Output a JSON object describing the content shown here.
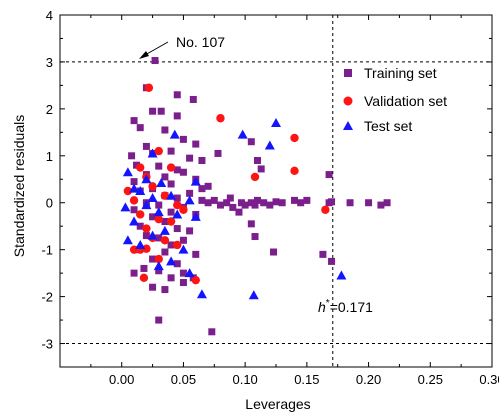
{
  "chart_data": {
    "type": "scatter",
    "xlabel": "Leverages",
    "ylabel": "Standardized residuals",
    "xlim": [
      -0.05,
      0.3
    ],
    "ylim": [
      -3.5,
      4
    ],
    "xticks": [
      "0.00",
      "0.05",
      "0.10",
      "0.15",
      "0.20",
      "0.25",
      "0.30"
    ],
    "xtick_values": [
      0.0,
      0.05,
      0.1,
      0.15,
      0.2,
      0.25,
      0.3
    ],
    "yticks": [
      "-3",
      "-2",
      "-1",
      "0",
      "1",
      "2",
      "3",
      "4"
    ],
    "ytick_values": [
      -3,
      -2,
      -1,
      0,
      1,
      2,
      3,
      4
    ],
    "grid": false,
    "legend_placement": "top-right",
    "reference_lines": {
      "horizontal": [
        3,
        -3
      ],
      "vertical": 0.171
    },
    "annotations": {
      "point_label": "No. 107",
      "point_label_target": [
        0.027,
        3.03
      ],
      "critical_leverage_base": "h",
      "critical_leverage_sup": "*",
      "critical_leverage_value": "=0.171"
    },
    "series": [
      {
        "name": "Training set",
        "marker": "square",
        "color": "#7b1f8c",
        "points": [
          [
            0.027,
            3.03
          ],
          [
            0.02,
            2.45
          ],
          [
            0.045,
            2.3
          ],
          [
            0.058,
            2.2
          ],
          [
            0.025,
            1.95
          ],
          [
            0.032,
            1.95
          ],
          [
            0.045,
            1.85
          ],
          [
            0.01,
            1.75
          ],
          [
            0.015,
            1.6
          ],
          [
            0.035,
            1.55
          ],
          [
            0.05,
            1.35
          ],
          [
            0.06,
            1.25
          ],
          [
            0.02,
            1.2
          ],
          [
            0.008,
            1.0
          ],
          [
            0.025,
            1.05
          ],
          [
            0.04,
            1.1
          ],
          [
            0.055,
            0.95
          ],
          [
            0.065,
            0.9
          ],
          [
            0.012,
            0.8
          ],
          [
            0.03,
            0.78
          ],
          [
            0.045,
            0.7
          ],
          [
            0.05,
            0.65
          ],
          [
            0.02,
            0.6
          ],
          [
            0.035,
            0.55
          ],
          [
            0.06,
            0.5
          ],
          [
            0.01,
            0.45
          ],
          [
            0.04,
            0.4
          ],
          [
            0.07,
            0.35
          ],
          [
            0.025,
            0.3
          ],
          [
            0.015,
            0.25
          ],
          [
            0.055,
            0.2
          ],
          [
            0.035,
            0.15
          ],
          [
            0.045,
            0.1
          ],
          [
            0.065,
            0.05
          ],
          [
            0.02,
            0.0
          ],
          [
            0.03,
            -0.05
          ],
          [
            0.05,
            -0.1
          ],
          [
            0.01,
            -0.15
          ],
          [
            0.04,
            -0.2
          ],
          [
            0.06,
            -0.25
          ],
          [
            0.025,
            -0.3
          ],
          [
            0.035,
            -0.4
          ],
          [
            0.015,
            -0.5
          ],
          [
            0.045,
            -0.55
          ],
          [
            0.055,
            -0.6
          ],
          [
            0.02,
            -0.7
          ],
          [
            0.03,
            -0.75
          ],
          [
            0.05,
            -0.8
          ],
          [
            0.04,
            -0.9
          ],
          [
            0.012,
            -1.0
          ],
          [
            0.035,
            -1.05
          ],
          [
            0.06,
            -1.1
          ],
          [
            0.025,
            -1.2
          ],
          [
            0.045,
            -1.3
          ],
          [
            0.018,
            -1.4
          ],
          [
            0.03,
            -1.45
          ],
          [
            0.05,
            -1.5
          ],
          [
            0.01,
            -1.5
          ],
          [
            0.04,
            -1.6
          ],
          [
            0.025,
            -1.8
          ],
          [
            0.035,
            -1.85
          ],
          [
            0.05,
            -1.7
          ],
          [
            0.058,
            -1.6
          ],
          [
            0.03,
            -2.5
          ],
          [
            0.073,
            -2.75
          ],
          [
            0.07,
            0.0
          ],
          [
            0.075,
            0.05
          ],
          [
            0.08,
            -0.05
          ],
          [
            0.085,
            0.0
          ],
          [
            0.09,
            -0.1
          ],
          [
            0.095,
            -0.2
          ],
          [
            0.1,
            -0.05
          ],
          [
            0.105,
            0.0
          ],
          [
            0.11,
            0.05
          ],
          [
            0.115,
            0.0
          ],
          [
            0.12,
            -0.05
          ],
          [
            0.125,
            0.02
          ],
          [
            0.13,
            0.0
          ],
          [
            0.088,
            0.1
          ],
          [
            0.097,
            0.0
          ],
          [
            0.108,
            -0.05
          ],
          [
            0.113,
            0.72
          ],
          [
            0.11,
            0.9
          ],
          [
            0.105,
            1.3
          ],
          [
            0.108,
            -0.72
          ],
          [
            0.105,
            -0.45
          ],
          [
            0.123,
            -1.05
          ],
          [
            0.14,
            0.05
          ],
          [
            0.145,
            0.0
          ],
          [
            0.15,
            0.05
          ],
          [
            0.168,
            0.0
          ],
          [
            0.168,
            0.6
          ],
          [
            0.17,
            0.02
          ],
          [
            0.163,
            -1.1
          ],
          [
            0.17,
            -1.25
          ],
          [
            0.185,
            0.0
          ],
          [
            0.2,
            0.0
          ],
          [
            0.21,
            -0.05
          ],
          [
            0.215,
            0.0
          ],
          [
            0.078,
            1.05
          ],
          [
            0.065,
            0.3
          ]
        ]
      },
      {
        "name": "Validation set",
        "marker": "circle",
        "color": "#ff1414",
        "points": [
          [
            0.022,
            2.45
          ],
          [
            0.08,
            1.8
          ],
          [
            0.14,
            1.38
          ],
          [
            0.03,
            1.1
          ],
          [
            0.015,
            0.75
          ],
          [
            0.04,
            0.75
          ],
          [
            0.14,
            0.68
          ],
          [
            0.02,
            0.55
          ],
          [
            0.108,
            0.55
          ],
          [
            0.025,
            0.35
          ],
          [
            0.005,
            0.25
          ],
          [
            0.035,
            0.15
          ],
          [
            0.01,
            0.05
          ],
          [
            0.045,
            -0.05
          ],
          [
            0.05,
            -0.15
          ],
          [
            0.165,
            -0.15
          ],
          [
            0.015,
            -0.25
          ],
          [
            0.03,
            -0.35
          ],
          [
            0.04,
            -0.4
          ],
          [
            0.02,
            -0.55
          ],
          [
            0.025,
            -0.75
          ],
          [
            0.035,
            -0.8
          ],
          [
            0.045,
            -0.9
          ],
          [
            0.01,
            -1.0
          ],
          [
            0.015,
            -1.0
          ],
          [
            0.02,
            -0.98
          ],
          [
            0.03,
            -1.2
          ],
          [
            0.018,
            -1.6
          ],
          [
            0.06,
            -1.65
          ]
        ]
      },
      {
        "name": "Test set",
        "marker": "triangle",
        "color": "#1414ff",
        "points": [
          [
            0.125,
            1.7
          ],
          [
            0.043,
            1.45
          ],
          [
            0.098,
            1.45
          ],
          [
            0.12,
            1.22
          ],
          [
            0.025,
            1.05
          ],
          [
            0.005,
            0.65
          ],
          [
            0.02,
            0.5
          ],
          [
            0.032,
            0.42
          ],
          [
            0.06,
            0.45
          ],
          [
            0.01,
            0.3
          ],
          [
            0.015,
            0.25
          ],
          [
            0.025,
            0.1
          ],
          [
            0.04,
            0.15
          ],
          [
            0.055,
            0.05
          ],
          [
            0.003,
            -0.1
          ],
          [
            0.02,
            -0.05
          ],
          [
            0.03,
            -0.2
          ],
          [
            0.045,
            -0.25
          ],
          [
            0.06,
            -0.3
          ],
          [
            0.01,
            -0.4
          ],
          [
            0.035,
            -0.6
          ],
          [
            0.025,
            -0.7
          ],
          [
            0.005,
            -0.8
          ],
          [
            0.015,
            -0.9
          ],
          [
            0.05,
            -1.0
          ],
          [
            0.04,
            -1.25
          ],
          [
            0.03,
            -1.35
          ],
          [
            0.055,
            -1.5
          ],
          [
            0.178,
            -1.55
          ],
          [
            0.065,
            -1.95
          ],
          [
            0.107,
            -1.97
          ]
        ]
      }
    ]
  }
}
